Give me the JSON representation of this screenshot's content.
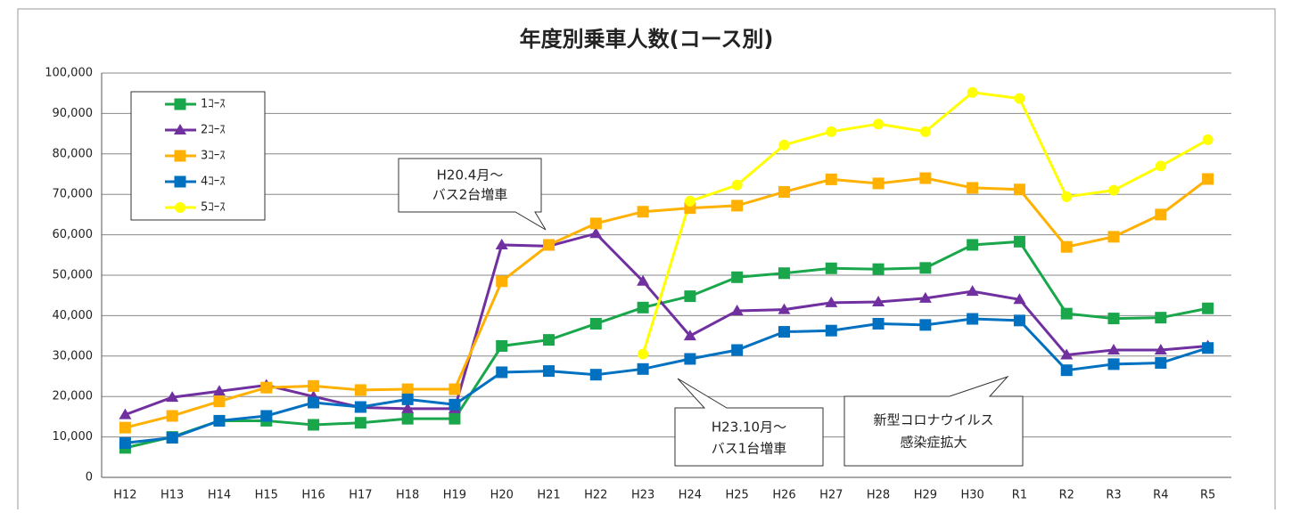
{
  "chart_data": {
    "type": "line",
    "title": "年度別乗車人数(コース別)",
    "categories": [
      "H12",
      "H13",
      "H14",
      "H15",
      "H16",
      "H17",
      "H18",
      "H19",
      "H20",
      "H21",
      "H22",
      "H23",
      "H24",
      "H25",
      "H26",
      "H27",
      "H28",
      "H29",
      "H30",
      "R1",
      "R2",
      "R3",
      "R4",
      "R5"
    ],
    "series": [
      {
        "name": "1ｺｰｽ",
        "color": "#1aa64a",
        "marker": "square",
        "values": [
          7300,
          10000,
          14000,
          14000,
          13000,
          13500,
          14500,
          14500,
          32500,
          34000,
          38000,
          42000,
          44800,
          49500,
          50500,
          51700,
          51500,
          51800,
          57500,
          58300,
          40500,
          39300,
          39500,
          41800
        ]
      },
      {
        "name": "2ｺｰｽ",
        "color": "#7030a0",
        "marker": "triangle",
        "values": [
          15500,
          19800,
          21300,
          22800,
          20000,
          17300,
          17000,
          17000,
          57500,
          57200,
          60300,
          48500,
          35000,
          41200,
          41500,
          43200,
          43400,
          44300,
          46000,
          44000,
          30300,
          31500,
          31500,
          32500
        ]
      },
      {
        "name": "3ｺｰｽ",
        "color": "#ffb000",
        "marker": "square",
        "values": [
          12300,
          15200,
          18800,
          22200,
          22600,
          21600,
          21800,
          21800,
          48500,
          57500,
          62800,
          65700,
          66600,
          67200,
          70600,
          73700,
          72700,
          74000,
          71600,
          71200,
          57000,
          59500,
          65000,
          73800
        ]
      },
      {
        "name": "4ｺｰｽ",
        "color": "#0070c0",
        "marker": "square",
        "values": [
          8500,
          9800,
          14000,
          15200,
          18500,
          17400,
          19300,
          18000,
          26000,
          26300,
          25400,
          26800,
          29300,
          31500,
          36000,
          36300,
          38000,
          37700,
          39200,
          38800,
          26500,
          28000,
          28300,
          32000
        ]
      },
      {
        "name": "5ｺｰｽ",
        "color": "#ffff00",
        "marker": "circle",
        "values": [
          null,
          null,
          null,
          null,
          null,
          null,
          null,
          null,
          null,
          null,
          null,
          30500,
          68300,
          72300,
          82200,
          85500,
          87400,
          85500,
          95200,
          93700,
          69400,
          71000,
          77000,
          83500
        ]
      }
    ],
    "ylim": [
      0,
      100000
    ],
    "yticks": [
      0,
      {
        "value": 10000,
        "label": "10,000"
      },
      {
        "value": 20000,
        "label": "20,000"
      },
      {
        "value": 30000,
        "label": "30,000"
      },
      {
        "value": 40000,
        "label": "40,000"
      },
      {
        "value": 50000,
        "label": "50,000"
      },
      {
        "value": 60000,
        "label": "60,000"
      },
      {
        "value": 70000,
        "label": "70,000"
      },
      {
        "value": 80000,
        "label": "80,000"
      },
      {
        "value": 90000,
        "label": "90,000"
      },
      {
        "value": 100000,
        "label": "100,000"
      }
    ],
    "grid": true,
    "legend": "upper left",
    "annotations": [
      [
        "H20.4月～",
        "バス2台増車"
      ],
      [
        "H23.10月～",
        "バス1台増車"
      ],
      [
        "新型コロナウイルス",
        "感染症拡大"
      ]
    ]
  }
}
